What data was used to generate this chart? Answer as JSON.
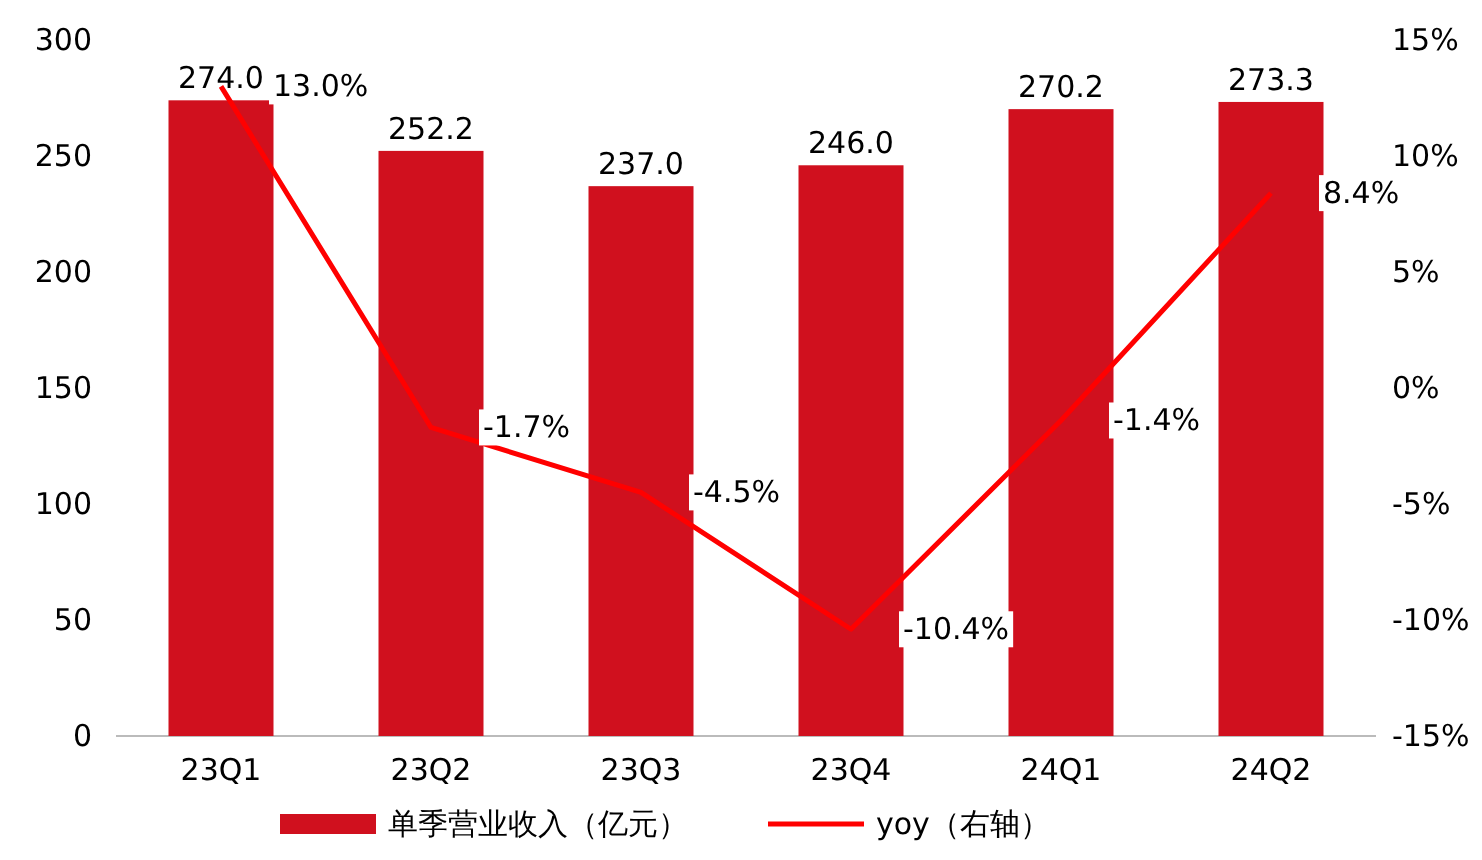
{
  "chart_data": {
    "type": "bar",
    "categories": [
      "23Q1",
      "23Q2",
      "23Q3",
      "23Q4",
      "24Q1",
      "24Q2"
    ],
    "series": [
      {
        "name": "单季营业收入（亿元）",
        "color": "#d0101e",
        "values": [
          274.0,
          252.2,
          237.0,
          246.0,
          270.2,
          273.3
        ],
        "value_labels": [
          "274.0",
          "252.2",
          "237.0",
          "246.0",
          "270.2",
          "273.3"
        ]
      },
      {
        "name": "yoy（右轴）",
        "type": "line",
        "axis": "y2",
        "color": "#ff0000",
        "values": [
          13.0,
          -1.7,
          -4.5,
          -10.4,
          -1.4,
          8.4
        ],
        "value_labels": [
          "13.0%",
          "-1.7%",
          "-4.5%",
          "-10.4%",
          "-1.4%",
          "8.4%"
        ]
      }
    ],
    "ylim": [
      0,
      300
    ],
    "yticks": [
      0,
      50,
      100,
      150,
      200,
      250,
      300
    ],
    "y2lim": [
      -15,
      15
    ],
    "y2ticks": [
      {
        "value": -15,
        "label": "-15%"
      },
      {
        "value": -10,
        "label": "-10%"
      },
      {
        "value": -5,
        "label": "-5%"
      },
      {
        "value": 0,
        "label": "0%"
      },
      {
        "value": 5,
        "label": "5%"
      },
      {
        "value": 10,
        "label": "10%"
      },
      {
        "value": 15,
        "label": "15%"
      }
    ],
    "grid": false,
    "legend": "bottom",
    "marker": "none",
    "line_style": "solid"
  }
}
